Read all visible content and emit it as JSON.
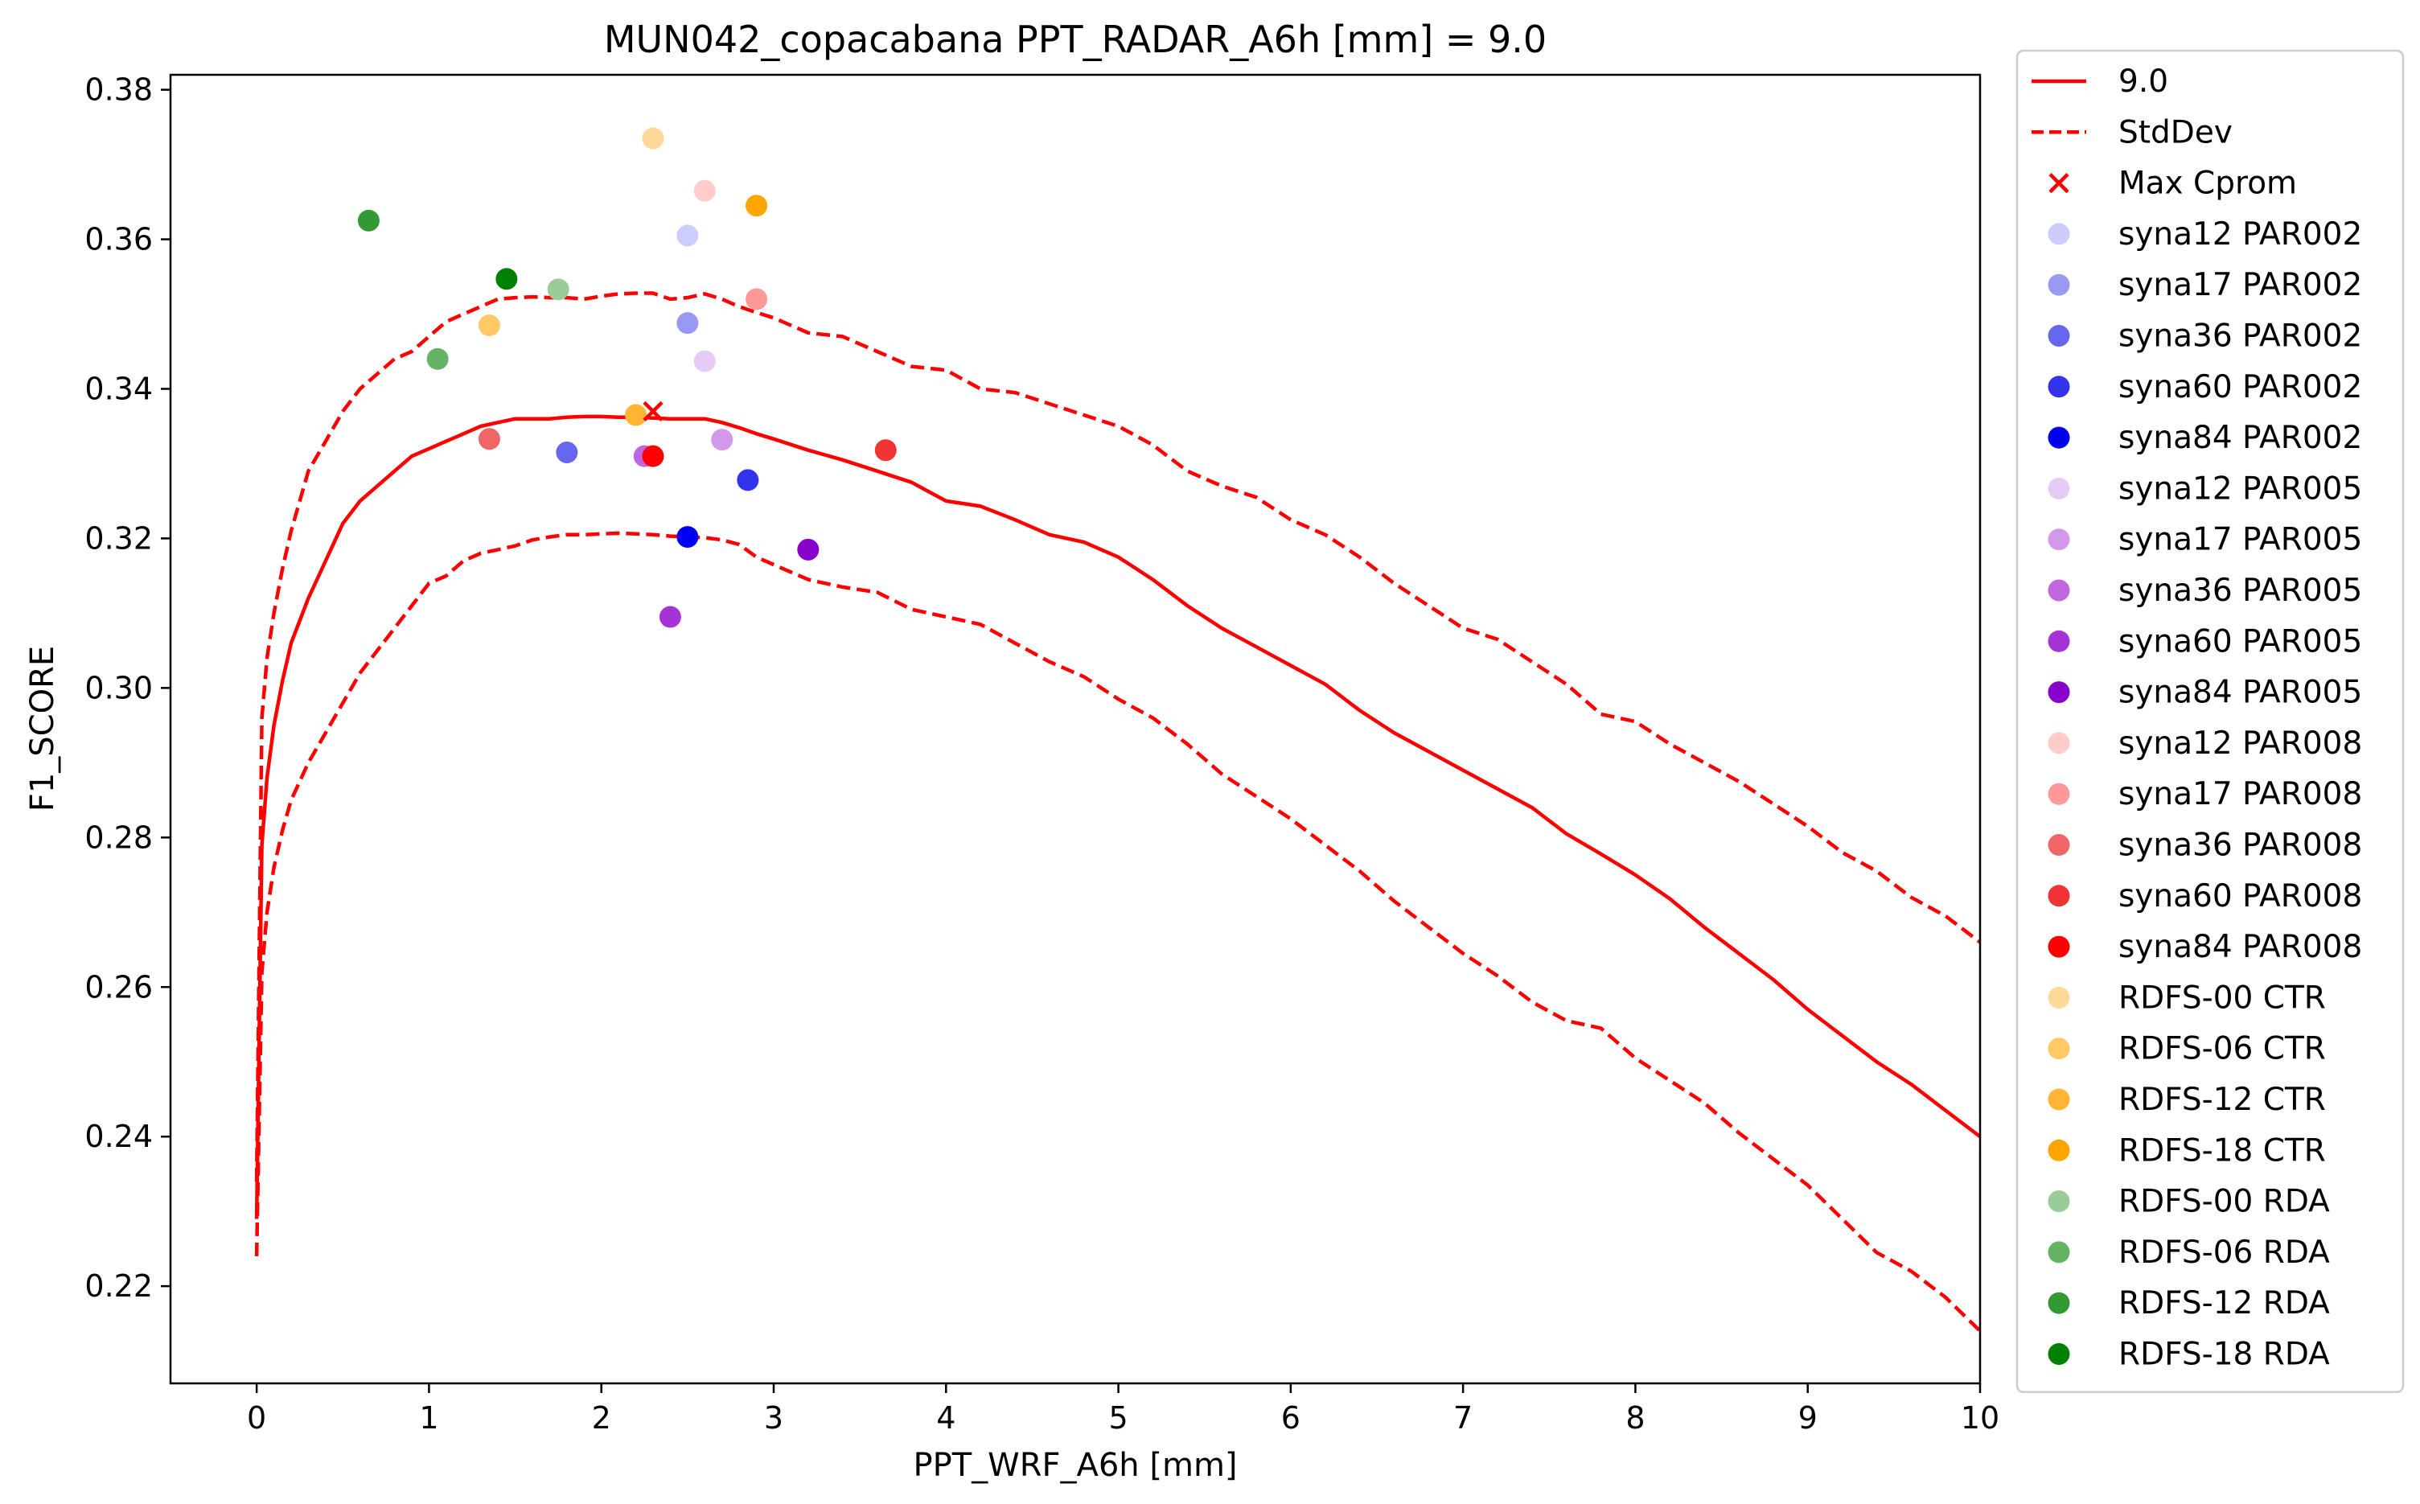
{
  "chart_data": {
    "type": "line",
    "title": "MUN042_copacabana    PPT_RADAR_A6h [mm] = 9.0",
    "xlabel": "PPT_WRF_A6h [mm]",
    "ylabel": "F1_SCORE",
    "xlim": [
      -0.5,
      10
    ],
    "ylim": [
      0.207,
      0.382
    ],
    "xticks": [
      0,
      1,
      2,
      3,
      4,
      5,
      6,
      7,
      8,
      9,
      10
    ],
    "yticks": [
      0.22,
      0.24,
      0.26,
      0.28,
      0.3,
      0.32,
      0.34,
      0.36,
      0.38
    ],
    "ytick_labels": [
      "0.22",
      "0.24",
      "0.26",
      "0.28",
      "0.30",
      "0.32",
      "0.34",
      "0.36",
      "0.38"
    ],
    "legend_position": "outside right",
    "lines": [
      {
        "name": "9.0",
        "color": "#ff0000",
        "style": "solid",
        "x": [
          0,
          0.03,
          0.06,
          0.1,
          0.15,
          0.2,
          0.3,
          0.4,
          0.5,
          0.6,
          0.7,
          0.8,
          0.9,
          1.0,
          1.1,
          1.2,
          1.3,
          1.4,
          1.5,
          1.6,
          1.7,
          1.8,
          1.9,
          2.0,
          2.1,
          2.2,
          2.3,
          2.4,
          2.5,
          2.6,
          2.7,
          2.8,
          2.9,
          3.0,
          3.2,
          3.4,
          3.6,
          3.8,
          4.0,
          4.2,
          4.4,
          4.6,
          4.8,
          5.0,
          5.2,
          5.4,
          5.6,
          5.8,
          6.0,
          6.2,
          6.4,
          6.6,
          6.8,
          7.0,
          7.2,
          7.4,
          7.6,
          7.8,
          8.0,
          8.2,
          8.4,
          8.6,
          8.8,
          9.0,
          9.2,
          9.4,
          9.6,
          9.8,
          10.0
        ],
        "y": [
          0.229,
          0.279,
          0.288,
          0.295,
          0.301,
          0.306,
          0.312,
          0.317,
          0.322,
          0.325,
          0.327,
          0.329,
          0.331,
          0.332,
          0.333,
          0.334,
          0.335,
          0.3355,
          0.336,
          0.336,
          0.336,
          0.3362,
          0.3363,
          0.3363,
          0.3362,
          0.3362,
          0.3361,
          0.336,
          0.336,
          0.336,
          0.3355,
          0.3348,
          0.334,
          0.3333,
          0.3318,
          0.3305,
          0.329,
          0.3275,
          0.325,
          0.3243,
          0.3225,
          0.3205,
          0.3195,
          0.3175,
          0.3145,
          0.311,
          0.308,
          0.3055,
          0.303,
          0.3005,
          0.297,
          0.294,
          0.2915,
          0.289,
          0.2865,
          0.284,
          0.2805,
          0.2778,
          0.275,
          0.2718,
          0.268,
          0.2645,
          0.261,
          0.257,
          0.2535,
          0.25,
          0.247,
          0.2435,
          0.24
        ]
      },
      {
        "name": "StdDev",
        "color": "#ff0000",
        "style": "dashed",
        "x": [
          0,
          0.03,
          0.06,
          0.1,
          0.15,
          0.2,
          0.3,
          0.4,
          0.5,
          0.6,
          0.7,
          0.8,
          0.9,
          1.0,
          1.1,
          1.2,
          1.3,
          1.4,
          1.5,
          1.6,
          1.7,
          1.8,
          1.9,
          2.0,
          2.1,
          2.2,
          2.3,
          2.4,
          2.5,
          2.6,
          2.7,
          2.8,
          2.9,
          3.0,
          3.2,
          3.4,
          3.6,
          3.8,
          4.0,
          4.2,
          4.4,
          4.6,
          4.8,
          5.0,
          5.2,
          5.4,
          5.6,
          5.8,
          6.0,
          6.2,
          6.4,
          6.6,
          6.8,
          7.0,
          7.2,
          7.4,
          7.6,
          7.8,
          8.0,
          8.2,
          8.4,
          8.6,
          8.8,
          9.0,
          9.2,
          9.4,
          9.6,
          9.8,
          10.0
        ],
        "y": [
          0.234,
          0.296,
          0.304,
          0.31,
          0.316,
          0.321,
          0.329,
          0.333,
          0.337,
          0.34,
          0.342,
          0.344,
          0.345,
          0.347,
          0.349,
          0.35,
          0.351,
          0.352,
          0.3522,
          0.3523,
          0.3522,
          0.3522,
          0.352,
          0.3524,
          0.3527,
          0.3528,
          0.3528,
          0.352,
          0.3522,
          0.3527,
          0.352,
          0.351,
          0.3502,
          0.3495,
          0.3475,
          0.347,
          0.345,
          0.343,
          0.3425,
          0.34,
          0.3395,
          0.338,
          0.3365,
          0.335,
          0.3325,
          0.329,
          0.327,
          0.3255,
          0.3225,
          0.3205,
          0.3175,
          0.314,
          0.311,
          0.308,
          0.3065,
          0.3035,
          0.3005,
          0.2965,
          0.2955,
          0.2925,
          0.29,
          0.2875,
          0.2845,
          0.2815,
          0.278,
          0.2755,
          0.272,
          0.2695,
          0.266
        ]
      },
      {
        "name": "",
        "color": "#ff0000",
        "style": "dashed",
        "x": [
          0,
          0.03,
          0.06,
          0.1,
          0.15,
          0.2,
          0.3,
          0.4,
          0.5,
          0.6,
          0.7,
          0.8,
          0.9,
          1.0,
          1.1,
          1.2,
          1.3,
          1.4,
          1.5,
          1.6,
          1.7,
          1.8,
          1.9,
          2.0,
          2.1,
          2.2,
          2.3,
          2.4,
          2.5,
          2.6,
          2.7,
          2.8,
          2.9,
          3.0,
          3.2,
          3.4,
          3.6,
          3.8,
          4.0,
          4.2,
          4.4,
          4.6,
          4.8,
          5.0,
          5.2,
          5.4,
          5.6,
          5.8,
          6.0,
          6.2,
          6.4,
          6.6,
          6.8,
          7.0,
          7.2,
          7.4,
          7.6,
          7.8,
          8.0,
          8.2,
          8.4,
          8.6,
          8.8,
          9.0,
          9.2,
          9.4,
          9.6,
          9.8,
          10.0
        ],
        "y": [
          0.224,
          0.262,
          0.27,
          0.276,
          0.281,
          0.285,
          0.29,
          0.294,
          0.298,
          0.302,
          0.305,
          0.308,
          0.311,
          0.314,
          0.315,
          0.317,
          0.318,
          0.3185,
          0.319,
          0.3198,
          0.3202,
          0.3205,
          0.3205,
          0.3206,
          0.3207,
          0.3206,
          0.3205,
          0.3203,
          0.3202,
          0.3201,
          0.3198,
          0.3192,
          0.3175,
          0.3165,
          0.3145,
          0.3135,
          0.3128,
          0.3105,
          0.3095,
          0.3085,
          0.306,
          0.3035,
          0.3015,
          0.2985,
          0.296,
          0.2925,
          0.2885,
          0.2855,
          0.2825,
          0.279,
          0.2755,
          0.2715,
          0.268,
          0.2645,
          0.2615,
          0.258,
          0.2555,
          0.2545,
          0.2505,
          0.2475,
          0.2445,
          0.2405,
          0.237,
          0.2335,
          0.229,
          0.2245,
          0.222,
          0.2185,
          0.214
        ]
      }
    ],
    "marker_max": {
      "name": "Max Cprom",
      "color": "#ff0000",
      "x": 2.3,
      "y": 0.337
    },
    "scatter": [
      {
        "name": "syna12 PAR002",
        "color": "#ccccff",
        "x": 2.5,
        "y": 0.3605
      },
      {
        "name": "syna17 PAR002",
        "color": "#9999f5",
        "x": 2.5,
        "y": 0.3488
      },
      {
        "name": "syna36 PAR002",
        "color": "#6666ee",
        "x": 1.8,
        "y": 0.3315
      },
      {
        "name": "syna60 PAR002",
        "color": "#3333ee",
        "x": 2.85,
        "y": 0.3278
      },
      {
        "name": "syna84 PAR002",
        "color": "#0000ee",
        "x": 2.5,
        "y": 0.3202
      },
      {
        "name": "syna12 PAR005",
        "color": "#e6ccf5",
        "x": 2.6,
        "y": 0.3437
      },
      {
        "name": "syna17 PAR005",
        "color": "#d299eb",
        "x": 2.7,
        "y": 0.3332
      },
      {
        "name": "syna36 PAR005",
        "color": "#bf66e0",
        "x": 2.25,
        "y": 0.331
      },
      {
        "name": "syna60 PAR005",
        "color": "#a633d6",
        "x": 2.4,
        "y": 0.3095
      },
      {
        "name": "syna84 PAR005",
        "color": "#8800cc",
        "x": 3.2,
        "y": 0.3185
      },
      {
        "name": "syna12 PAR008",
        "color": "#ffcccc",
        "x": 2.6,
        "y": 0.3665
      },
      {
        "name": "syna17 PAR008",
        "color": "#ff9999",
        "x": 2.9,
        "y": 0.352
      },
      {
        "name": "syna36 PAR008",
        "color": "#f06666",
        "x": 1.35,
        "y": 0.3333
      },
      {
        "name": "syna60 PAR008",
        "color": "#f03333",
        "x": 3.65,
        "y": 0.3318
      },
      {
        "name": "syna84 PAR008",
        "color": "#ff0000",
        "x": 2.3,
        "y": 0.331
      },
      {
        "name": "RDFS-00 CTR",
        "color": "#ffd99a",
        "x": 2.3,
        "y": 0.3735
      },
      {
        "name": "RDFS-06 CTR",
        "color": "#ffc966",
        "x": 1.35,
        "y": 0.3485
      },
      {
        "name": "RDFS-12 CTR",
        "color": "#ffb533",
        "x": 2.2,
        "y": 0.3365
      },
      {
        "name": "RDFS-18 CTR",
        "color": "#ffa500",
        "x": 2.9,
        "y": 0.3645
      },
      {
        "name": "RDFS-00 RDA",
        "color": "#99cc99",
        "x": 1.75,
        "y": 0.3533
      },
      {
        "name": "RDFS-06 RDA",
        "color": "#66b366",
        "x": 1.05,
        "y": 0.344
      },
      {
        "name": "RDFS-12 RDA",
        "color": "#339933",
        "x": 0.65,
        "y": 0.3625
      },
      {
        "name": "RDFS-18 RDA",
        "color": "#008000",
        "x": 1.45,
        "y": 0.3547
      }
    ]
  }
}
